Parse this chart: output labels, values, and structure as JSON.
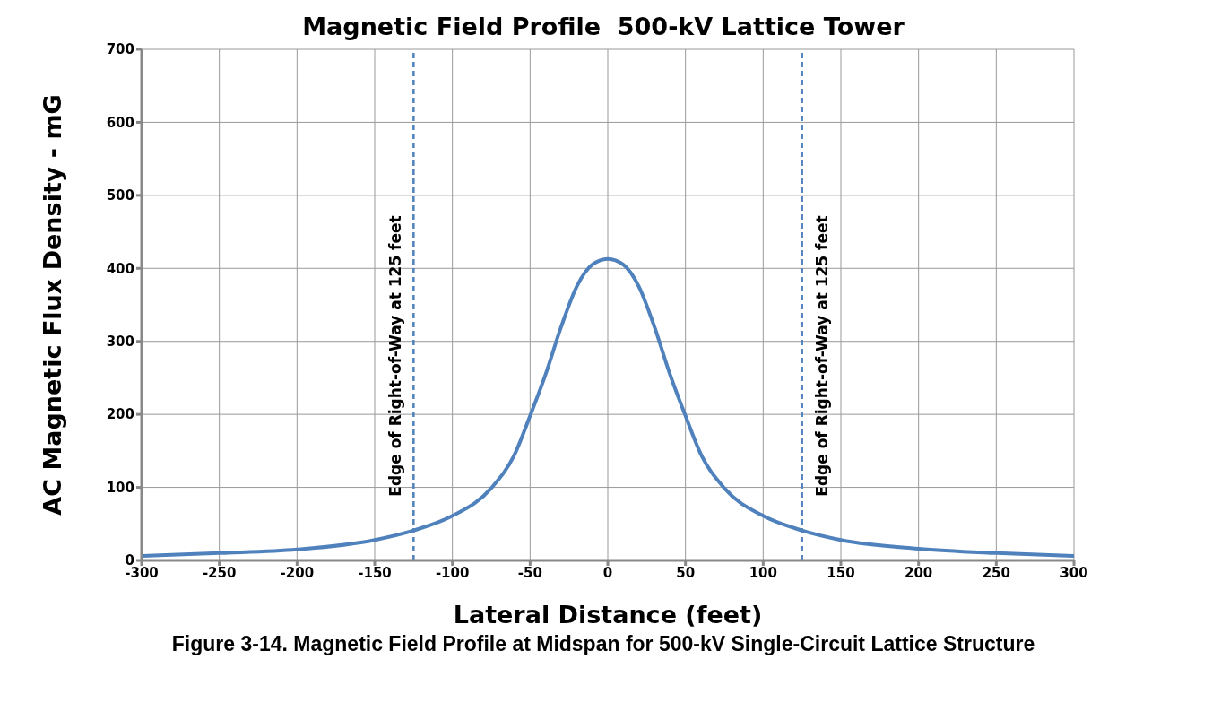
{
  "chart_data": {
    "type": "line",
    "title": "Magnetic Field Profile  500-kV Lattice Tower",
    "xlabel": "Lateral Distance (feet)",
    "ylabel": "AC   Magnetic Flux Density  -  mG",
    "x": [
      -300,
      -250,
      -200,
      -150,
      -125,
      -100,
      -75,
      -60,
      -50,
      -40,
      -30,
      -20,
      -10,
      0,
      10,
      20,
      30,
      40,
      50,
      60,
      75,
      100,
      125,
      150,
      200,
      250,
      300
    ],
    "series": [
      {
        "color": "#4f81bd",
        "values": [
          6,
          10,
          15,
          28,
          41,
          61,
          99,
          145,
          198,
          255,
          320,
          375,
          405,
          413,
          405,
          375,
          320,
          255,
          198,
          145,
          99,
          61,
          41,
          28,
          16,
          10,
          6
        ]
      }
    ],
    "xlim": [
      -300,
      300
    ],
    "xticks": [
      -300,
      -250,
      -200,
      -150,
      -100,
      -50,
      0,
      50,
      100,
      150,
      200,
      250,
      300
    ],
    "ylim": [
      0,
      700
    ],
    "yticks": [
      0,
      100,
      200,
      300,
      400,
      500,
      600,
      700
    ],
    "grid": true,
    "marker": "none",
    "line_style": "solid",
    "ref_lines": [
      {
        "axis": "x",
        "value": -125,
        "label": "Edge of Right-of-Way at 125 feet",
        "color": "#4f81bd",
        "line_style": "dashed"
      },
      {
        "axis": "x",
        "value": 125,
        "label": "Edge of Right-of-Way at 125 feet",
        "color": "#4f81bd",
        "line_style": "dashed"
      }
    ],
    "annotations": [
      "Figure 3-14. Magnetic Field Profile at Midspan for 500-kV Single-Circuit Lattice Structure"
    ]
  }
}
